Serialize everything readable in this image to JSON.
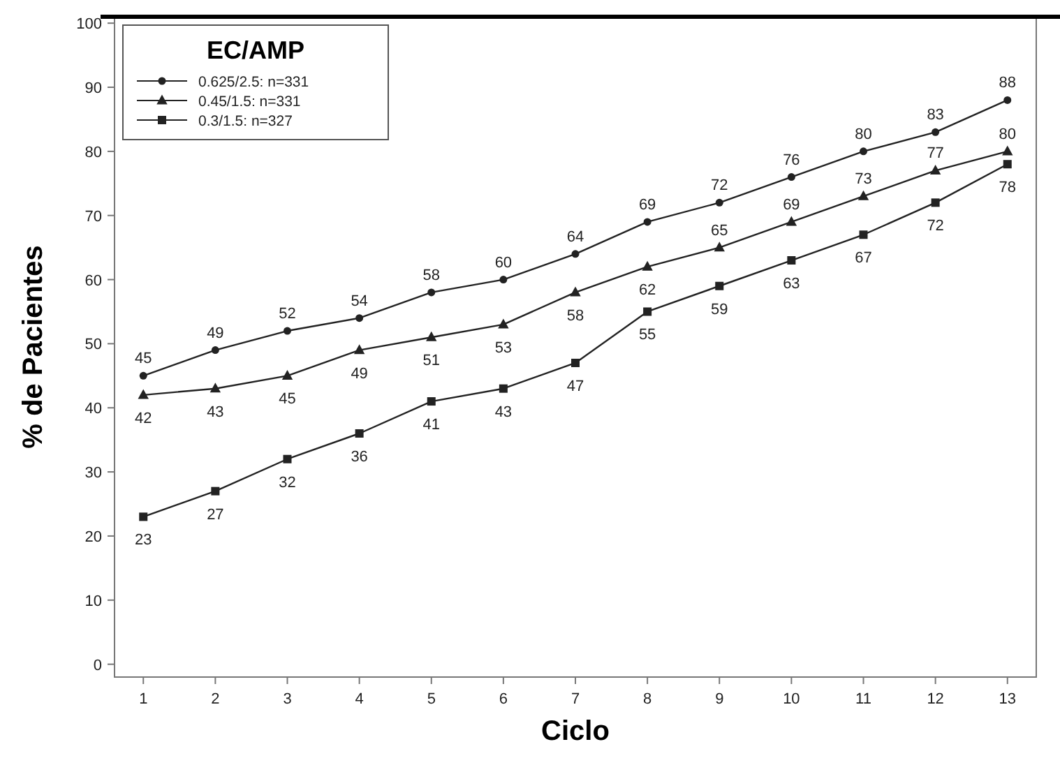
{
  "chart_data": {
    "type": "line",
    "xlabel": "Ciclo",
    "ylabel": "% de Pacientes",
    "legend_title": "EC/AMP",
    "x": [
      1,
      2,
      3,
      4,
      5,
      6,
      7,
      8,
      9,
      10,
      11,
      12,
      13
    ],
    "xlim": [
      0.6,
      13.4
    ],
    "xticks": [
      1,
      2,
      3,
      4,
      5,
      6,
      7,
      8,
      9,
      10,
      11,
      12,
      13
    ],
    "ylim": [
      -2,
      101
    ],
    "yticks": [
      0,
      10,
      20,
      30,
      40,
      50,
      60,
      70,
      80,
      90,
      100
    ],
    "grid": false,
    "legend": "top left",
    "data_labels": true,
    "series": [
      {
        "name": "0.625/2.5: n=331",
        "color": "#222222",
        "marker": "circle",
        "values": [
          45,
          49,
          52,
          54,
          58,
          60,
          64,
          69,
          72,
          76,
          80,
          83,
          88
        ]
      },
      {
        "name": "0.45/1.5: n=331",
        "color": "#222222",
        "marker": "triangle",
        "values": [
          42,
          43,
          45,
          49,
          51,
          53,
          58,
          62,
          65,
          69,
          73,
          77,
          80
        ]
      },
      {
        "name": "0.3/1.5: n=327",
        "color": "#222222",
        "marker": "square",
        "values": [
          23,
          27,
          32,
          36,
          41,
          43,
          47,
          55,
          59,
          63,
          67,
          72,
          78
        ]
      }
    ]
  }
}
